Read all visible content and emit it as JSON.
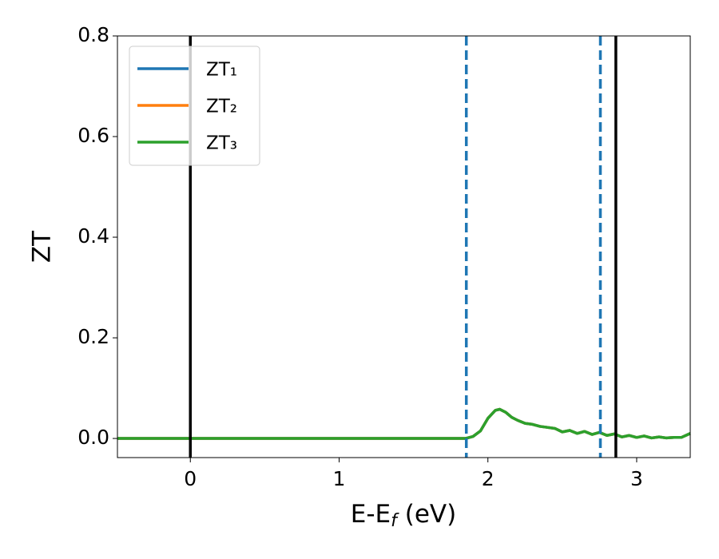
{
  "chart_data": {
    "type": "line",
    "ylabel": "ZT",
    "xlabel": {
      "text": "E-E",
      "subscript": "f",
      "suffix": " (eV)"
    },
    "xlim": [
      -0.49,
      3.36
    ],
    "ylim": [
      -0.038,
      0.8
    ],
    "xticks": [
      0,
      1,
      2,
      3
    ],
    "yticks": [
      {
        "value": 0,
        "label": "0.0"
      },
      {
        "value": 0.2,
        "label": "0.2"
      },
      {
        "value": 0.4,
        "label": "0.4"
      },
      {
        "value": 0.6,
        "label": "0.6"
      },
      {
        "value": 0.8,
        "label": "0.8"
      }
    ],
    "x": [
      -0.49,
      0,
      0.5,
      1,
      1.5,
      1.85,
      1.9,
      1.95,
      2.0,
      2.05,
      2.08,
      2.12,
      2.16,
      2.2,
      2.25,
      2.3,
      2.35,
      2.4,
      2.45,
      2.5,
      2.55,
      2.6,
      2.65,
      2.7,
      2.75,
      2.8,
      2.85,
      2.9,
      2.95,
      3.0,
      3.05,
      3.1,
      3.15,
      3.2,
      3.25,
      3.3,
      3.36
    ],
    "series": [
      {
        "name": "ZT₁",
        "color": "#1f77b4",
        "values": [
          0,
          0,
          0,
          0,
          0,
          0,
          0.004,
          0.015,
          0.04,
          0.056,
          0.058,
          0.052,
          0.042,
          0.036,
          0.03,
          0.028,
          0.024,
          0.022,
          0.02,
          0.013,
          0.016,
          0.01,
          0.014,
          0.008,
          0.012,
          0.006,
          0.009,
          0.003,
          0.006,
          0.002,
          0.005,
          0.001,
          0.003,
          0.001,
          0.002,
          0.002,
          0.01
        ]
      },
      {
        "name": "ZT₂",
        "color": "#ff7f0e",
        "values": [
          0,
          0,
          0,
          0,
          0,
          0,
          0.004,
          0.015,
          0.04,
          0.056,
          0.058,
          0.052,
          0.042,
          0.036,
          0.03,
          0.028,
          0.024,
          0.022,
          0.02,
          0.013,
          0.016,
          0.01,
          0.014,
          0.008,
          0.012,
          0.006,
          0.009,
          0.003,
          0.006,
          0.002,
          0.005,
          0.001,
          0.003,
          0.001,
          0.002,
          0.002,
          0.01
        ]
      },
      {
        "name": "ZT₃",
        "color": "#2ca02c",
        "values": [
          0,
          0,
          0,
          0,
          0,
          0,
          0.004,
          0.015,
          0.04,
          0.056,
          0.058,
          0.052,
          0.042,
          0.036,
          0.03,
          0.028,
          0.024,
          0.022,
          0.02,
          0.013,
          0.016,
          0.01,
          0.014,
          0.008,
          0.012,
          0.006,
          0.009,
          0.003,
          0.006,
          0.002,
          0.005,
          0.001,
          0.003,
          0.001,
          0.002,
          0.002,
          0.01
        ]
      }
    ],
    "vlines": [
      {
        "x": 0,
        "color": "#000000",
        "style": "solid"
      },
      {
        "x": 2.86,
        "color": "#000000",
        "style": "solid"
      },
      {
        "x": 1.855,
        "color": "#1f77b4",
        "style": "dashed"
      },
      {
        "x": 2.756,
        "color": "#1f77b4",
        "style": "dashed"
      }
    ],
    "legend": "upper left"
  }
}
